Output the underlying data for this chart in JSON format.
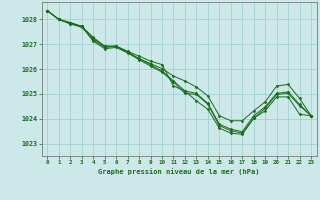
{
  "title": "Graphe pression niveau de la mer (hPa)",
  "bg_color": "#cce8e8",
  "grid_color": "#99cccc",
  "line_color": "#1a6b1a",
  "marker_color": "#1a6b1a",
  "xlim": [
    -0.5,
    23.5
  ],
  "ylim": [
    1022.5,
    1028.7
  ],
  "yticks": [
    1023,
    1024,
    1025,
    1026,
    1027,
    1028
  ],
  "xticks": [
    0,
    1,
    2,
    3,
    4,
    5,
    6,
    7,
    8,
    9,
    10,
    11,
    12,
    13,
    14,
    15,
    16,
    17,
    18,
    19,
    20,
    21,
    22,
    23
  ],
  "series": [
    [
      1028.35,
      1028.0,
      1027.82,
      1027.72,
      1027.28,
      1026.92,
      1026.92,
      1026.72,
      1026.52,
      1026.32,
      1026.18,
      1025.32,
      1025.12,
      1024.72,
      1024.38,
      1023.62,
      1023.42,
      1023.37,
      1024.02,
      1024.32,
      1024.88,
      1024.88,
      1024.18,
      1024.12
    ],
    [
      1028.35,
      1028.0,
      1027.82,
      1027.68,
      1027.22,
      1026.92,
      1026.92,
      1026.68,
      1026.42,
      1026.22,
      1026.02,
      1025.72,
      1025.52,
      1025.28,
      1024.92,
      1024.12,
      1023.92,
      1023.92,
      1024.32,
      1024.68,
      1025.32,
      1025.38,
      1024.82,
      1024.12
    ],
    [
      1028.35,
      1028.0,
      1027.87,
      1027.72,
      1027.18,
      1026.87,
      1026.92,
      1026.68,
      1026.42,
      1026.18,
      1025.92,
      1025.52,
      1025.12,
      1025.02,
      1024.62,
      1023.78,
      1023.58,
      1023.48,
      1024.12,
      1024.48,
      1025.02,
      1025.08,
      1024.58,
      1024.12
    ],
    [
      1028.35,
      1028.0,
      1027.87,
      1027.72,
      1027.12,
      1026.82,
      1026.87,
      1026.65,
      1026.38,
      1026.12,
      1025.88,
      1025.48,
      1025.02,
      1024.98,
      1024.58,
      1023.72,
      1023.52,
      1023.42,
      1024.02,
      1024.42,
      1024.98,
      1025.02,
      1024.52,
      1024.12
    ]
  ]
}
